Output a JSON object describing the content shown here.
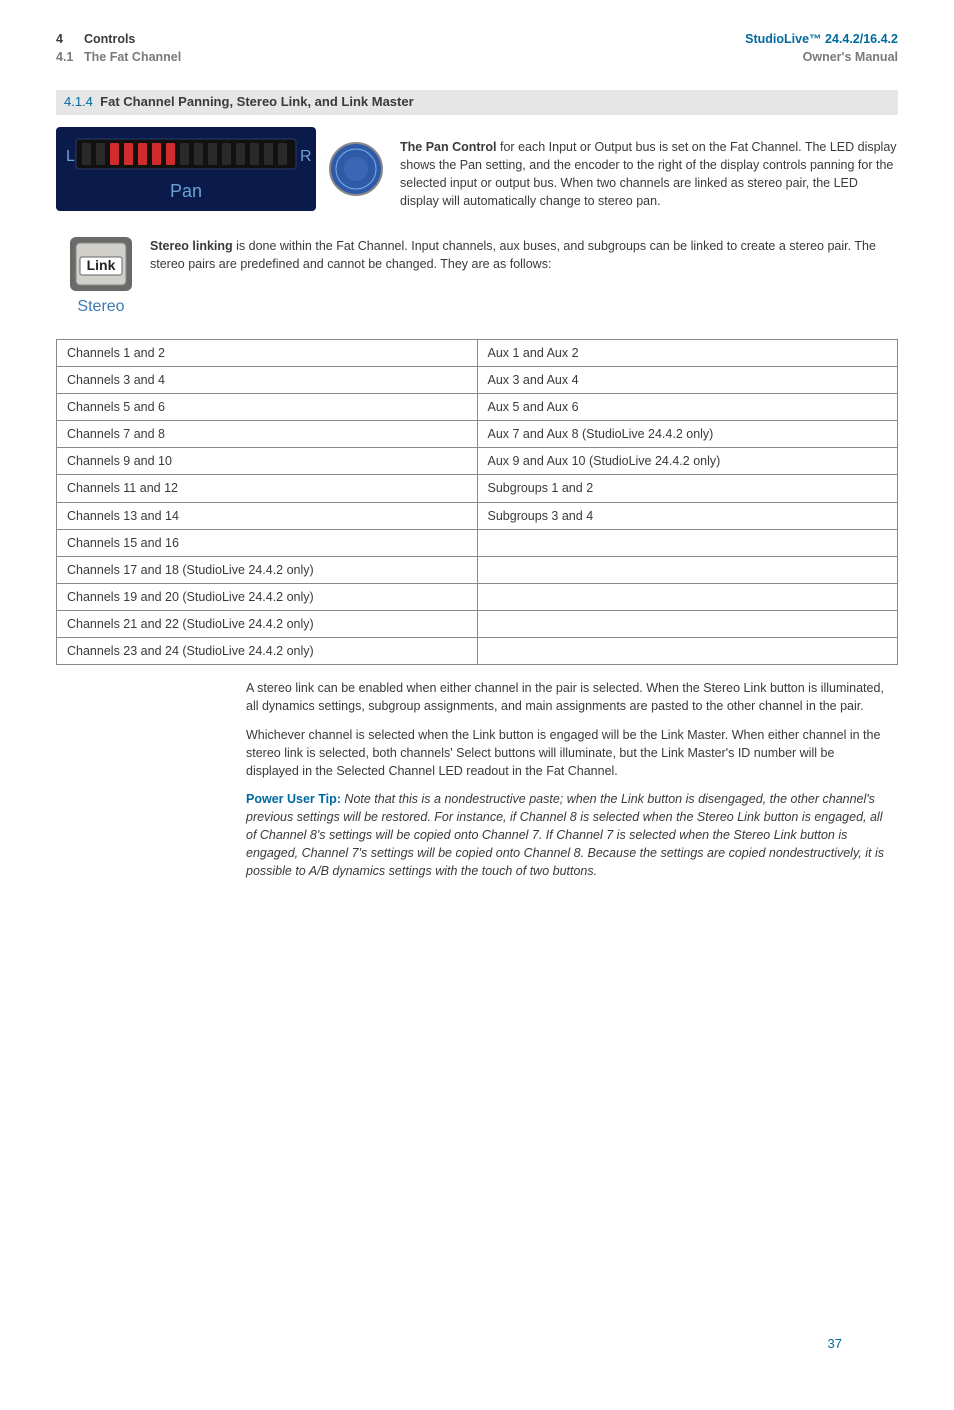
{
  "header": {
    "left_chapter_num": "4",
    "left_chapter": "Controls",
    "left_sub_num": "4.1",
    "left_sub": "The Fat Channel",
    "right_brand": "StudioLive™ 24.4.2/16.4.2",
    "right_sub": "Owner's Manual"
  },
  "section": {
    "number": "4.1.4",
    "title": "Fat Channel Panning, Stereo Link, and Link Master"
  },
  "pan_block": {
    "label_L": "L",
    "label_R": "R",
    "label_Pan": "Pan",
    "knob_text": "",
    "lead": "The Pan Control",
    "text": " for each Input or Output bus is set on the Fat Channel. The LED display shows the Pan setting, and the encoder to the right of the display controls panning for the selected input or output bus. When two channels are linked as stereo pair, the LED display will automatically change to stereo pan."
  },
  "link_block": {
    "btn_label": "Link",
    "stereo_label": "Stereo",
    "lead": "Stereo linking",
    "text": " is done within the Fat Channel. Input channels, aux buses, and subgroups can be linked to create a stereo pair. The stereo pairs are predefined and cannot be changed. They are as follows:"
  },
  "table": {
    "rows": [
      [
        "Channels 1 and 2",
        "Aux 1 and Aux 2"
      ],
      [
        "Channels 3 and 4",
        "Aux 3 and Aux 4"
      ],
      [
        "Channels 5 and 6",
        "Aux 5 and Aux 6"
      ],
      [
        "Channels 7 and 8",
        "Aux 7 and Aux 8 (StudioLive 24.4.2 only)"
      ],
      [
        "Channels 9 and 10",
        "Aux 9 and Aux 10 (StudioLive 24.4.2 only)"
      ],
      [
        "Channels 11 and 12",
        "Subgroups 1 and 2"
      ],
      [
        "Channels 13 and 14",
        "Subgroups 3 and 4"
      ],
      [
        "Channels 15 and 16",
        ""
      ],
      [
        "Channels 17 and 18 (StudioLive 24.4.2 only)",
        ""
      ],
      [
        "Channels 19 and 20 (StudioLive 24.4.2 only)",
        ""
      ],
      [
        "Channels 21 and 22 (StudioLive 24.4.2 only)",
        ""
      ],
      [
        "Channels 23 and 24 (StudioLive 24.4.2 only)",
        ""
      ]
    ]
  },
  "body": {
    "p1": "A stereo link can be enabled when either channel in the pair is selected. When the Stereo Link button is illuminated, all dynamics settings, subgroup assignments, and main assignments are pasted to the other channel in the pair.",
    "p2": "Whichever channel is selected when the Link button is engaged will be the Link Master. When either channel in the stereo link is selected, both channels' Select buttons will illuminate, but the Link Master's ID number will be displayed in the Selected Channel LED readout in the Fat Channel.",
    "tip_lead": "Power User Tip:",
    "tip_text": " Note that this is a nondestructive paste; when the Link button is disengaged, the other channel's previous settings will be restored. For instance, if Channel 8 is selected when the Stereo Link button is engaged, all of Channel 8's settings will be copied onto Channel 7. If Channel 7 is selected when the Stereo Link button is engaged, Channel 7's settings will be copied onto Channel 8. Because the settings are copied nondestructively, it is possible to A/B dynamics settings with the touch of two buttons."
  },
  "page_number": "37",
  "colors": {
    "blue": "#006a9e",
    "panel_bg": "#0a1a4a",
    "led_red": "#d22b2b",
    "btn_face": "#d0cfc9",
    "knob_blue": "#2f5aa8"
  }
}
